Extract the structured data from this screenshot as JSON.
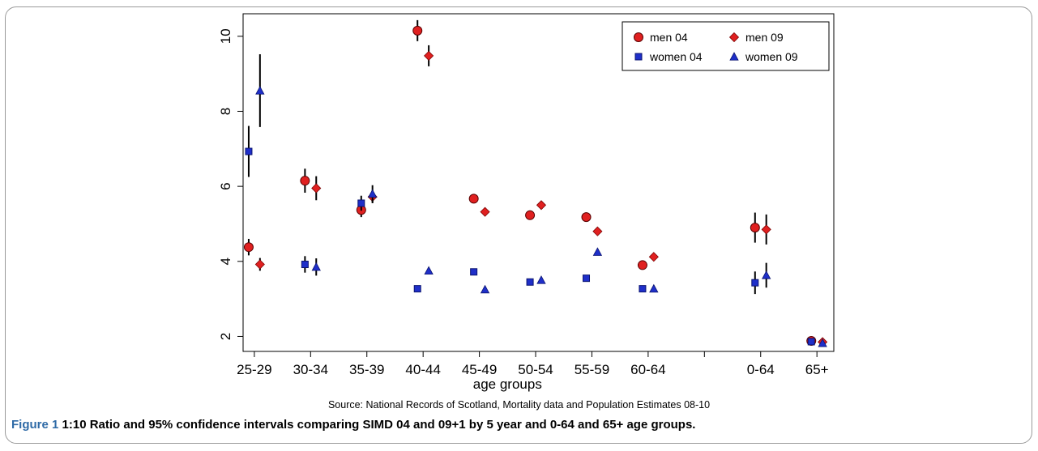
{
  "chart_data": {
    "type": "scatter",
    "xlabel": "age groups",
    "categories": [
      "25-29",
      "30-34",
      "35-39",
      "40-44",
      "45-49",
      "50-54",
      "55-59",
      "60-64",
      "0-64",
      "65+"
    ],
    "category_positions": [
      1,
      2,
      3,
      4,
      5,
      6,
      7,
      8,
      10,
      11
    ],
    "extra_x_ticks": [
      9
    ],
    "ylim": [
      1.6,
      10.6
    ],
    "yticks": [
      2,
      4,
      6,
      8,
      10
    ],
    "grid": false,
    "legend_placement": "top-right",
    "series": [
      {
        "name": "men 04",
        "marker": "circle",
        "color": "#e02020",
        "offset": -0.1,
        "values": [
          4.38,
          6.15,
          5.37,
          10.15,
          5.67,
          5.23,
          5.18,
          3.9,
          4.9,
          1.88
        ],
        "ci": [
          [
            4.16,
            4.6
          ],
          [
            5.83,
            6.47
          ],
          [
            5.18,
            5.56
          ],
          [
            9.87,
            10.43
          ],
          [
            5.56,
            5.78
          ],
          [
            5.12,
            5.34
          ],
          [
            5.08,
            5.28
          ],
          [
            3.82,
            3.98
          ],
          [
            4.5,
            5.3
          ],
          [
            1.83,
            1.93
          ]
        ]
      },
      {
        "name": "men 09",
        "marker": "diamond",
        "color": "#e02020",
        "offset": 0.1,
        "values": [
          3.92,
          5.95,
          5.72,
          9.48,
          5.32,
          5.5,
          4.8,
          4.12,
          4.85,
          1.85
        ],
        "ci": [
          [
            3.75,
            4.09
          ],
          [
            5.63,
            6.27
          ],
          [
            5.55,
            5.89
          ],
          [
            9.2,
            9.76
          ],
          [
            5.22,
            5.42
          ],
          [
            5.4,
            5.6
          ],
          [
            4.7,
            4.9
          ],
          [
            4.04,
            4.2
          ],
          [
            4.45,
            5.25
          ],
          [
            1.8,
            1.9
          ]
        ]
      },
      {
        "name": "women 04",
        "marker": "square",
        "color": "#1f2fc9",
        "offset": -0.1,
        "values": [
          6.93,
          3.92,
          5.55,
          3.27,
          3.72,
          3.45,
          3.55,
          3.27,
          3.43,
          1.86
        ],
        "ci": [
          [
            6.25,
            7.61
          ],
          [
            3.7,
            4.14
          ],
          [
            5.35,
            5.75
          ],
          [
            3.2,
            3.34
          ],
          [
            3.64,
            3.8
          ],
          [
            3.38,
            3.52
          ],
          [
            3.48,
            3.62
          ],
          [
            3.2,
            3.34
          ],
          [
            3.13,
            3.73
          ],
          [
            1.81,
            1.91
          ]
        ]
      },
      {
        "name": "women 09",
        "marker": "triangle",
        "color": "#1f2fc9",
        "offset": 0.1,
        "values": [
          8.55,
          3.85,
          5.8,
          3.75,
          3.25,
          3.5,
          4.25,
          3.27,
          3.63,
          1.82
        ],
        "ci": [
          [
            7.58,
            9.52
          ],
          [
            3.62,
            4.08
          ],
          [
            5.57,
            6.03
          ],
          [
            3.68,
            3.82
          ],
          [
            3.19,
            3.31
          ],
          [
            3.43,
            3.57
          ],
          [
            4.18,
            4.32
          ],
          [
            3.21,
            3.33
          ],
          [
            3.3,
            3.96
          ],
          [
            1.77,
            1.87
          ]
        ]
      }
    ]
  },
  "source_text": "Source: National Records of Scotland, Mortality data and Population Estimates 08-10",
  "caption": {
    "label": "Figure 1",
    "text": "1:10 Ratio and 95% confidence intervals comparing SIMD 04 and 09+1 by 5 year and 0-64 and 65+ age groups."
  }
}
